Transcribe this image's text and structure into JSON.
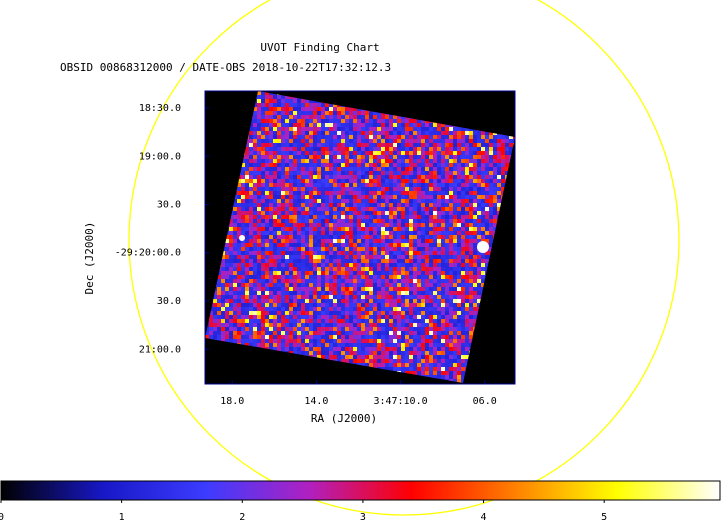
{
  "chart_data": {
    "type": "image",
    "title": "UVOT Finding Chart",
    "subtitle": "OBSID 00868312000 / DATE-OBS 2018-10-22T17:32:12.3",
    "xlabel": "RA (J2000)",
    "ylabel": "Dec (J2000)",
    "xlim": [
      56.8304,
      56.769
    ],
    "xticks": [
      {
        "value": 56.825,
        "label": "18.0"
      },
      {
        "value": 56.80833,
        "label": "14.0"
      },
      {
        "value": 56.79167,
        "label": "3:47:10.0"
      },
      {
        "value": 56.775,
        "label": "06.0"
      }
    ],
    "ylim": [
      -29.356,
      -29.3054
    ],
    "yticks": [
      {
        "value": -29.30833,
        "label": "18:30.0"
      },
      {
        "value": -29.31667,
        "label": "19:00.0"
      },
      {
        "value": -29.325,
        "label": "30.0"
      },
      {
        "value": -29.33333,
        "label": "-29:20:00.0"
      },
      {
        "value": -29.34167,
        "label": "30.0"
      },
      {
        "value": -29.35,
        "label": "21:00.0"
      }
    ],
    "colorbar": {
      "clim": [
        0,
        5.96
      ],
      "ticks": [
        0,
        1,
        2,
        3,
        4,
        5
      ],
      "colors": [
        "#000000",
        "#1818c8",
        "#3c3cff",
        "#b020c0",
        "#ff0000",
        "#ff8000",
        "#ffff00",
        "#ffffff"
      ]
    }
  }
}
